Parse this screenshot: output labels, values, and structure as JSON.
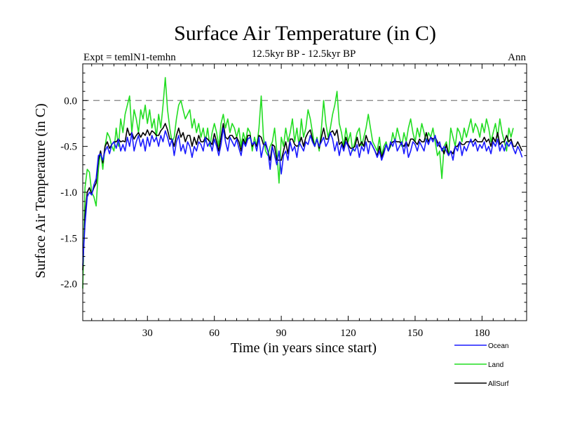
{
  "chart_data": {
    "type": "line",
    "title": "Surface Air Temperature (in C)",
    "subtitle": "12.5kyr BP - 12.5kyr BP",
    "expt_label": "Expt = temlN1-temhn",
    "season_label": "Ann",
    "xlabel": "Time (in years since start)",
    "ylabel": "Surface Air Temperature (in C)",
    "xlim": [
      1,
      200
    ],
    "ylim": [
      -2.4,
      0.4
    ],
    "x_ticks": [
      30,
      60,
      90,
      120,
      150,
      180
    ],
    "x_tick_labels": [
      "30",
      "60",
      "90",
      "120",
      "150",
      "180"
    ],
    "y_ticks": [
      -2.0,
      -1.5,
      -1.0,
      -0.5,
      0.0
    ],
    "y_tick_labels": [
      "-2.0",
      "-1.5",
      "-1.0",
      "-0.5",
      "0.0"
    ],
    "reference_line": 0.0,
    "series": [
      {
        "name": "Ocean",
        "color": "#1a1aff",
        "x_start": 1,
        "x_step": 1,
        "values": [
          -1.8,
          -1.35,
          -1.05,
          -1.0,
          -1.03,
          -0.92,
          -0.85,
          -0.6,
          -0.58,
          -0.65,
          -0.55,
          -0.5,
          -0.58,
          -0.48,
          -0.45,
          -0.52,
          -0.42,
          -0.55,
          -0.48,
          -0.55,
          -0.4,
          -0.5,
          -0.35,
          -0.55,
          -0.45,
          -0.38,
          -0.5,
          -0.42,
          -0.55,
          -0.4,
          -0.5,
          -0.38,
          -0.45,
          -0.4,
          -0.5,
          -0.38,
          -0.45,
          -0.33,
          -0.4,
          -0.5,
          -0.42,
          -0.6,
          -0.45,
          -0.38,
          -0.55,
          -0.48,
          -0.58,
          -0.45,
          -0.5,
          -0.62,
          -0.5,
          -0.55,
          -0.45,
          -0.48,
          -0.55,
          -0.4,
          -0.5,
          -0.45,
          -0.55,
          -0.42,
          -0.5,
          -0.6,
          -0.48,
          -0.3,
          -0.45,
          -0.55,
          -0.4,
          -0.45,
          -0.5,
          -0.42,
          -0.52,
          -0.6,
          -0.45,
          -0.5,
          -0.42,
          -0.4,
          -0.48,
          -0.45,
          -0.55,
          -0.4,
          -0.62,
          -0.5,
          -0.45,
          -0.55,
          -0.75,
          -0.5,
          -0.6,
          -0.7,
          -0.55,
          -0.8,
          -0.6,
          -0.55,
          -0.65,
          -0.45,
          -0.55,
          -0.5,
          -0.62,
          -0.45,
          -0.5,
          -0.55,
          -0.45,
          -0.48,
          -0.38,
          -0.45,
          -0.5,
          -0.42,
          -0.5,
          -0.45,
          -0.4,
          -0.5,
          -0.45,
          -0.35,
          -0.42,
          -0.55,
          -0.45,
          -0.6,
          -0.48,
          -0.55,
          -0.45,
          -0.5,
          -0.6,
          -0.52,
          -0.55,
          -0.48,
          -0.62,
          -0.5,
          -0.55,
          -0.45,
          -0.58,
          -0.45,
          -0.5,
          -0.55,
          -0.62,
          -0.55,
          -0.65,
          -0.58,
          -0.48,
          -0.55,
          -0.45,
          -0.5,
          -0.42,
          -0.55,
          -0.5,
          -0.45,
          -0.58,
          -0.45,
          -0.62,
          -0.55,
          -0.45,
          -0.48,
          -0.55,
          -0.45,
          -0.5,
          -0.55,
          -0.42,
          -0.48,
          -0.4,
          -0.45,
          -0.38,
          -0.5,
          -0.45,
          -0.55,
          -0.5,
          -0.55,
          -0.6,
          -0.55,
          -0.65,
          -0.5,
          -0.55,
          -0.45,
          -0.6,
          -0.5,
          -0.55,
          -0.48,
          -0.42,
          -0.5,
          -0.45,
          -0.55,
          -0.48,
          -0.52,
          -0.45,
          -0.55,
          -0.5,
          -0.58,
          -0.45,
          -0.5,
          -0.42,
          -0.55,
          -0.48,
          -0.55,
          -0.45,
          -0.5,
          -0.45,
          -0.52,
          -0.58,
          -0.5,
          -0.55,
          -0.62
        ]
      },
      {
        "name": "Land",
        "color": "#22dd22",
        "x_start": 1,
        "x_step": 1,
        "values": [
          -2.05,
          -0.95,
          -0.75,
          -0.78,
          -1.0,
          -1.05,
          -1.15,
          -0.75,
          -0.55,
          -0.75,
          -0.5,
          -0.35,
          -0.4,
          -0.5,
          -0.55,
          -0.3,
          -0.5,
          -0.2,
          -0.35,
          -0.15,
          -0.05,
          0.05,
          -0.35,
          -0.1,
          -0.2,
          -0.35,
          -0.1,
          -0.2,
          -0.05,
          -0.25,
          -0.1,
          -0.3,
          -0.2,
          -0.4,
          -0.15,
          -0.3,
          -0.05,
          0.25,
          -0.1,
          -0.3,
          -0.45,
          -0.4,
          -0.2,
          -0.05,
          0.0,
          -0.1,
          -0.2,
          -0.15,
          -0.1,
          -0.3,
          -0.2,
          -0.35,
          -0.25,
          -0.4,
          -0.3,
          -0.45,
          -0.3,
          -0.5,
          -0.35,
          -0.25,
          -0.35,
          -0.5,
          -0.25,
          -0.15,
          -0.3,
          -0.2,
          -0.35,
          -0.25,
          -0.3,
          -0.4,
          -0.3,
          -0.5,
          -0.35,
          -0.45,
          -0.3,
          -0.35,
          -0.55,
          -0.4,
          -0.5,
          -0.3,
          0.05,
          -0.4,
          -0.55,
          -0.6,
          -0.5,
          -0.45,
          -0.3,
          -0.55,
          -0.9,
          -0.4,
          -0.5,
          -0.3,
          -0.45,
          -0.35,
          -0.2,
          -0.45,
          -0.3,
          -0.5,
          -0.2,
          -0.4,
          -0.3,
          -0.1,
          -0.2,
          -0.35,
          -0.5,
          -0.4,
          -0.55,
          -0.3,
          0.0,
          -0.25,
          -0.4,
          -0.3,
          -0.15,
          -0.05,
          0.1,
          -0.25,
          -0.35,
          -0.5,
          -0.3,
          -0.45,
          -0.35,
          -0.55,
          -0.45,
          -0.35,
          -0.3,
          -0.5,
          -0.4,
          -0.3,
          -0.15,
          -0.3,
          -0.45,
          -0.5,
          -0.55,
          -0.4,
          -0.6,
          -0.5,
          -0.45,
          -0.55,
          -0.5,
          -0.35,
          -0.45,
          -0.3,
          -0.4,
          -0.5,
          -0.35,
          -0.45,
          -0.3,
          -0.2,
          -0.35,
          -0.45,
          -0.3,
          -0.4,
          -0.25,
          -0.35,
          -0.45,
          -0.35,
          -0.4,
          -0.3,
          -0.45,
          -0.6,
          -0.55,
          -0.85,
          -0.5,
          -0.45,
          -0.6,
          -0.3,
          -0.4,
          -0.5,
          -0.3,
          -0.35,
          -0.45,
          -0.3,
          -0.4,
          -0.3,
          -0.2,
          -0.35,
          -0.25,
          -0.3,
          -0.4,
          -0.25,
          -0.35,
          -0.2,
          -0.3,
          -0.45,
          -0.35,
          -0.25,
          -0.4,
          -0.2,
          -0.35,
          -0.45,
          -0.55,
          -0.3,
          -0.4,
          -0.3
        ]
      },
      {
        "name": "AllSurf",
        "color": "#000000",
        "x_start": 1,
        "x_step": 1,
        "values": [
          -1.85,
          -1.25,
          -1.0,
          -0.95,
          -1.02,
          -0.95,
          -0.9,
          -0.65,
          -0.55,
          -0.68,
          -0.5,
          -0.45,
          -0.52,
          -0.48,
          -0.45,
          -0.45,
          -0.42,
          -0.45,
          -0.44,
          -0.45,
          -0.3,
          -0.38,
          -0.35,
          -0.42,
          -0.38,
          -0.35,
          -0.4,
          -0.35,
          -0.38,
          -0.32,
          -0.38,
          -0.33,
          -0.35,
          -0.38,
          -0.38,
          -0.33,
          -0.3,
          -0.25,
          -0.32,
          -0.42,
          -0.42,
          -0.5,
          -0.38,
          -0.3,
          -0.4,
          -0.35,
          -0.45,
          -0.38,
          -0.38,
          -0.5,
          -0.4,
          -0.48,
          -0.38,
          -0.45,
          -0.45,
          -0.4,
          -0.42,
          -0.45,
          -0.48,
          -0.36,
          -0.45,
          -0.55,
          -0.4,
          -0.25,
          -0.4,
          -0.42,
          -0.38,
          -0.38,
          -0.42,
          -0.4,
          -0.45,
          -0.55,
          -0.42,
          -0.48,
          -0.38,
          -0.38,
          -0.5,
          -0.45,
          -0.5,
          -0.38,
          -0.4,
          -0.48,
          -0.48,
          -0.55,
          -0.65,
          -0.48,
          -0.5,
          -0.65,
          -0.65,
          -0.65,
          -0.55,
          -0.45,
          -0.58,
          -0.42,
          -0.42,
          -0.48,
          -0.5,
          -0.48,
          -0.4,
          -0.5,
          -0.4,
          -0.35,
          -0.32,
          -0.42,
          -0.5,
          -0.42,
          -0.52,
          -0.4,
          -0.3,
          -0.42,
          -0.42,
          -0.35,
          -0.33,
          -0.38,
          -0.32,
          -0.48,
          -0.45,
          -0.52,
          -0.4,
          -0.48,
          -0.52,
          -0.52,
          -0.5,
          -0.4,
          -0.5,
          -0.45,
          -0.5,
          -0.38,
          -0.45,
          -0.45,
          -0.5,
          -0.55,
          -0.6,
          -0.5,
          -0.62,
          -0.55,
          -0.48,
          -0.55,
          -0.48,
          -0.45,
          -0.44,
          -0.45,
          -0.45,
          -0.48,
          -0.5,
          -0.45,
          -0.5,
          -0.42,
          -0.42,
          -0.45,
          -0.48,
          -0.42,
          -0.45,
          -0.45,
          -0.35,
          -0.45,
          -0.4,
          -0.42,
          -0.4,
          -0.45,
          -0.5,
          -0.52,
          -0.58,
          -0.48,
          -0.6,
          -0.55,
          -0.58,
          -0.5,
          -0.5,
          -0.45,
          -0.48,
          -0.48,
          -0.45,
          -0.45,
          -0.45,
          -0.45,
          -0.42,
          -0.45,
          -0.45,
          -0.45,
          -0.4,
          -0.45,
          -0.42,
          -0.5,
          -0.4,
          -0.45,
          -0.35,
          -0.48,
          -0.45,
          -0.45,
          -0.38,
          -0.45,
          -0.42,
          -0.5,
          -0.5,
          -0.45,
          -0.5,
          -0.55
        ]
      }
    ]
  }
}
